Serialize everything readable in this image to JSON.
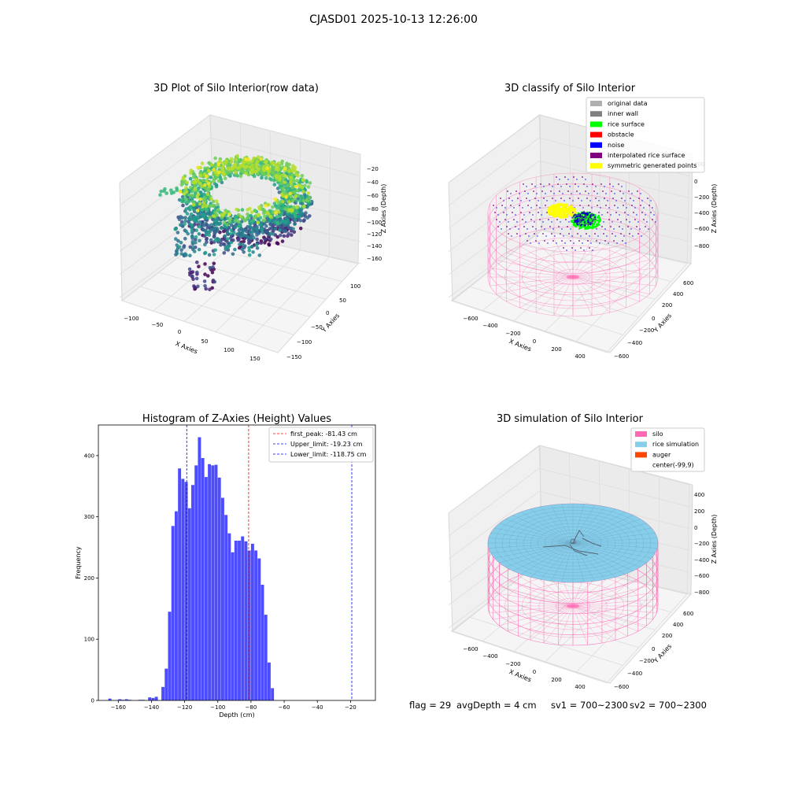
{
  "suptitle": "CJASD01 2025-10-13 12:26:00",
  "footer": {
    "flag": "flag = 29",
    "avg": "avgDepth = 4 cm",
    "sv1": "sv1 = 700~2300",
    "sv2": "sv2 = 700~2300"
  },
  "colors": {
    "hist_bar": "#4d4dff",
    "first_peak_line": "#ff0000",
    "limit_line": "#0000ff",
    "silo_wire": "#ff69b4",
    "rice_sim": "#87ceeb",
    "auger": "#ff4500"
  },
  "chart_data": [
    {
      "type": "scatter",
      "title": "3D Plot of Silo Interior(row data)",
      "xlabel": "X Axies",
      "ylabel": "Y Axies",
      "zlabel": "Z Axies (Depth)",
      "x_ticks": [
        "−100",
        "−50",
        "0",
        "50",
        "100",
        "150"
      ],
      "y_ticks": [
        "−150",
        "−100",
        "−50",
        "0",
        "50",
        "100"
      ],
      "z_ticks": [
        "−20",
        "−40",
        "−60",
        "−80",
        "−100",
        "−120",
        "−140",
        "−160"
      ],
      "xlim": [
        -120,
        160
      ],
      "ylim": [
        -160,
        120
      ],
      "zlim": [
        -170,
        -10
      ],
      "colormap": "viridis"
    },
    {
      "type": "scatter",
      "title": "3D classify of Silo Interior",
      "xlabel": "X Axies",
      "ylabel": "Y Axies",
      "zlabel": "Z Axies (Depth)",
      "x_ticks": [
        "−600",
        "−400",
        "−200",
        "0",
        "200",
        "400"
      ],
      "y_ticks": [
        "−600",
        "−400",
        "−200",
        "0",
        "200",
        "400",
        "600"
      ],
      "z_ticks": [
        "200",
        "0",
        "−200",
        "−400",
        "−600",
        "−800"
      ],
      "legend_position": "top-right",
      "legend": [
        {
          "label": "original data",
          "color": "#b0b0b0"
        },
        {
          "label": "inner wall",
          "color": "#808080"
        },
        {
          "label": "rice surface",
          "color": "#00ff00"
        },
        {
          "label": "obstacle",
          "color": "#ff0000"
        },
        {
          "label": "noise",
          "color": "#0000ff"
        },
        {
          "label": "interpolated rice surface",
          "color": "#800080"
        },
        {
          "label": "symmetric generated points",
          "color": "#ffff00"
        }
      ]
    },
    {
      "type": "bar",
      "title": "Histogram of Z-Axies (Height) Values",
      "xlabel": "Depth (cm)",
      "ylabel": "Frequency",
      "xlim": [
        -172,
        -5
      ],
      "ylim": [
        0,
        450
      ],
      "x_ticks": [
        -160,
        -140,
        -120,
        -100,
        -80,
        -60,
        -40,
        -20
      ],
      "x_tick_labels": [
        "−160",
        "−140",
        "−120",
        "−100",
        "−80",
        "−60",
        "−40",
        "−20"
      ],
      "y_ticks": [
        0,
        100,
        200,
        300,
        400
      ],
      "y_tick_labels": [
        "0",
        "100",
        "200",
        "300",
        "400"
      ],
      "bin_start": -166,
      "bin_width": 2,
      "counts": [
        3,
        0,
        0,
        2,
        1,
        2,
        1,
        0,
        0,
        1,
        1,
        0,
        5,
        4,
        6,
        0,
        22,
        52,
        145,
        285,
        309,
        379,
        362,
        357,
        314,
        352,
        384,
        430,
        396,
        365,
        386,
        384,
        385,
        364,
        331,
        303,
        273,
        242,
        261,
        261,
        268,
        260,
        245,
        256,
        245,
        232,
        189,
        140,
        62,
        20
      ],
      "lines": [
        {
          "label": "first_peak: -81.43 cm",
          "x": -81.43,
          "color": "#ff0000"
        },
        {
          "label": "Upper_limit: -19.23 cm",
          "x": -19.23,
          "color": "#0000ff"
        },
        {
          "label": "Lower_limit: -118.75 cm",
          "x": -118.75,
          "color": "#0000ff"
        }
      ],
      "legend_position": "top-right"
    },
    {
      "type": "scatter",
      "title": "3D simulation of Silo Interior",
      "xlabel": "X Axies",
      "ylabel": "Y Axies",
      "zlabel": "Z Axies (Depth)",
      "x_ticks": [
        "−600",
        "−400",
        "−200",
        "0",
        "200",
        "400"
      ],
      "y_ticks": [
        "−600",
        "−400",
        "−200",
        "0",
        "200",
        "400",
        "600"
      ],
      "z_ticks": [
        "400",
        "200",
        "0",
        "−200",
        "−400",
        "−600",
        "−800"
      ],
      "legend_position": "top-right",
      "legend": [
        {
          "label": "silo",
          "color": "#ff69b4"
        },
        {
          "label": "rice simulation",
          "color": "#87ceeb"
        },
        {
          "label": "auger",
          "color": "#ff4500"
        },
        {
          "label": "center(-99,9)",
          "color": ""
        }
      ]
    }
  ]
}
